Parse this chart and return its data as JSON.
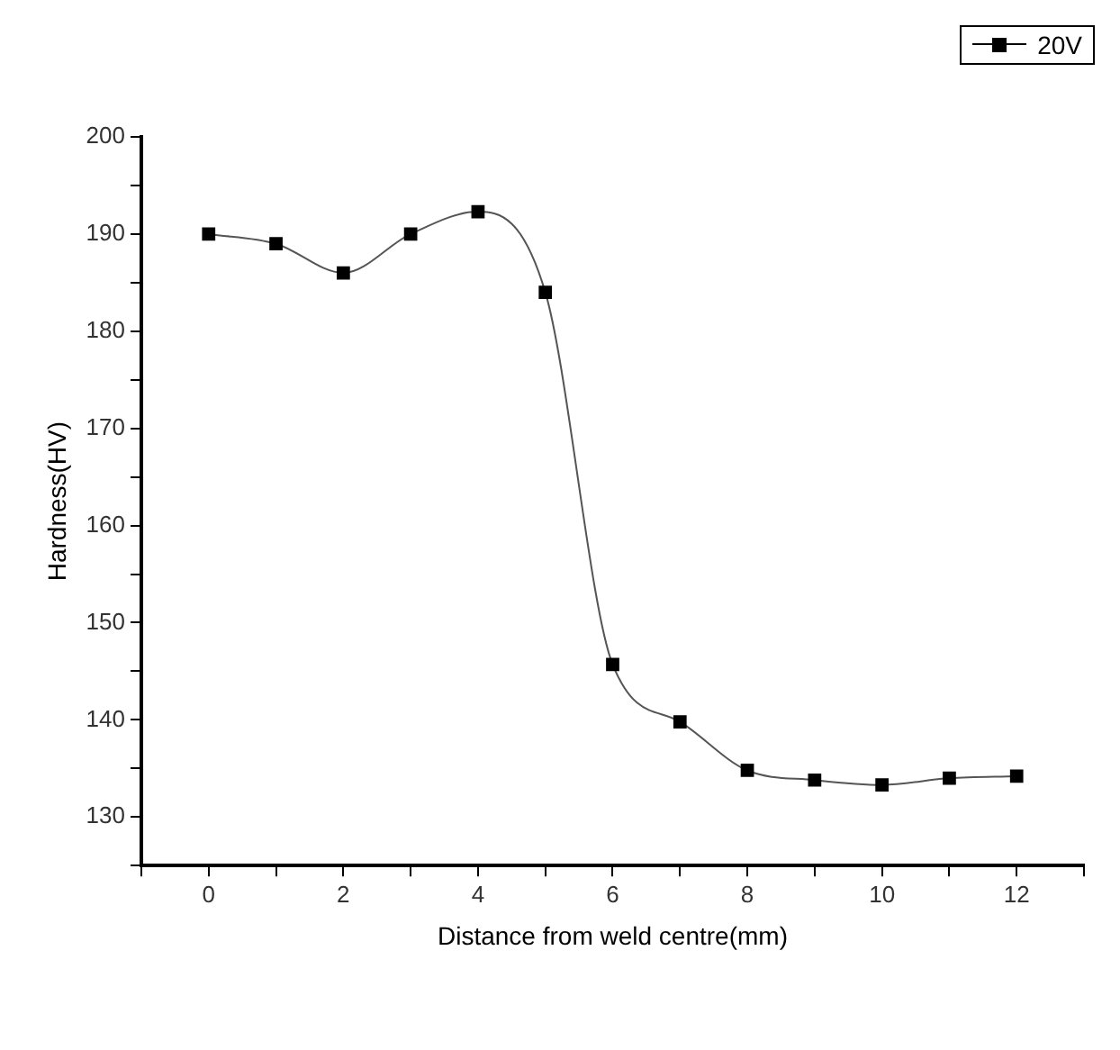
{
  "chart_data": {
    "type": "line",
    "xlabel": "Distance from weld centre(mm)",
    "ylabel": "Hardness(HV)",
    "x": [
      0,
      1,
      2,
      3,
      4,
      5,
      6,
      7,
      8,
      9,
      10,
      11,
      12
    ],
    "series": [
      {
        "name": "20V",
        "color": "#000000",
        "values": [
          190,
          189,
          186,
          190,
          192.3,
          184,
          145.7,
          139.8,
          134.8,
          133.8,
          133.3,
          134,
          134.2
        ]
      }
    ],
    "xlim": [
      -1,
      13
    ],
    "xticks": [
      {
        "value": -1,
        "label": null
      },
      0,
      {
        "value": 1,
        "label": null
      },
      2,
      {
        "value": 3,
        "label": null
      },
      4,
      {
        "value": 5,
        "label": null
      },
      6,
      {
        "value": 7,
        "label": null
      },
      8,
      {
        "value": 9,
        "label": null
      },
      10,
      {
        "value": 11,
        "label": null
      },
      12,
      {
        "value": 13,
        "label": null
      }
    ],
    "ylim": [
      125,
      200
    ],
    "yticks": [
      {
        "value": 125,
        "label": null
      },
      130,
      {
        "value": 135,
        "label": null
      },
      140,
      {
        "value": 145,
        "label": null
      },
      150,
      {
        "value": 155,
        "label": null
      },
      160,
      {
        "value": 165,
        "label": null
      },
      170,
      {
        "value": 175,
        "label": null
      },
      180,
      {
        "value": 185,
        "label": null
      },
      190,
      {
        "value": 195,
        "label": null
      },
      200
    ],
    "grid": false,
    "legend": "top right",
    "marker": "square",
    "line_style": "solid"
  }
}
